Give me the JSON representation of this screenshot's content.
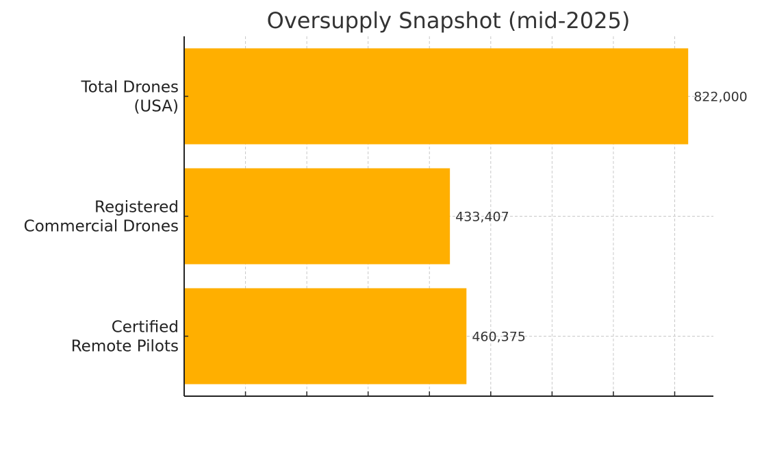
{
  "chart_data": {
    "type": "bar",
    "orientation": "horizontal",
    "title": "Oversupply Snapshot (mid-2025)",
    "categories": [
      [
        "Total Drones",
        "(USA)"
      ],
      [
        "Registered",
        "Commercial Drones"
      ],
      [
        "Certified",
        "Remote Pilots"
      ]
    ],
    "values": [
      822000,
      433407,
      460375
    ],
    "value_labels": [
      "822,000",
      "433,407",
      "460,375"
    ],
    "xlim": [
      0,
      863100
    ],
    "x_tick_step": 100000,
    "x_tick_labels_visible": false,
    "grid": true,
    "colors": {
      "bar": "#FFAF00",
      "grid": "#c8c8c8",
      "axis": "#222222"
    }
  }
}
